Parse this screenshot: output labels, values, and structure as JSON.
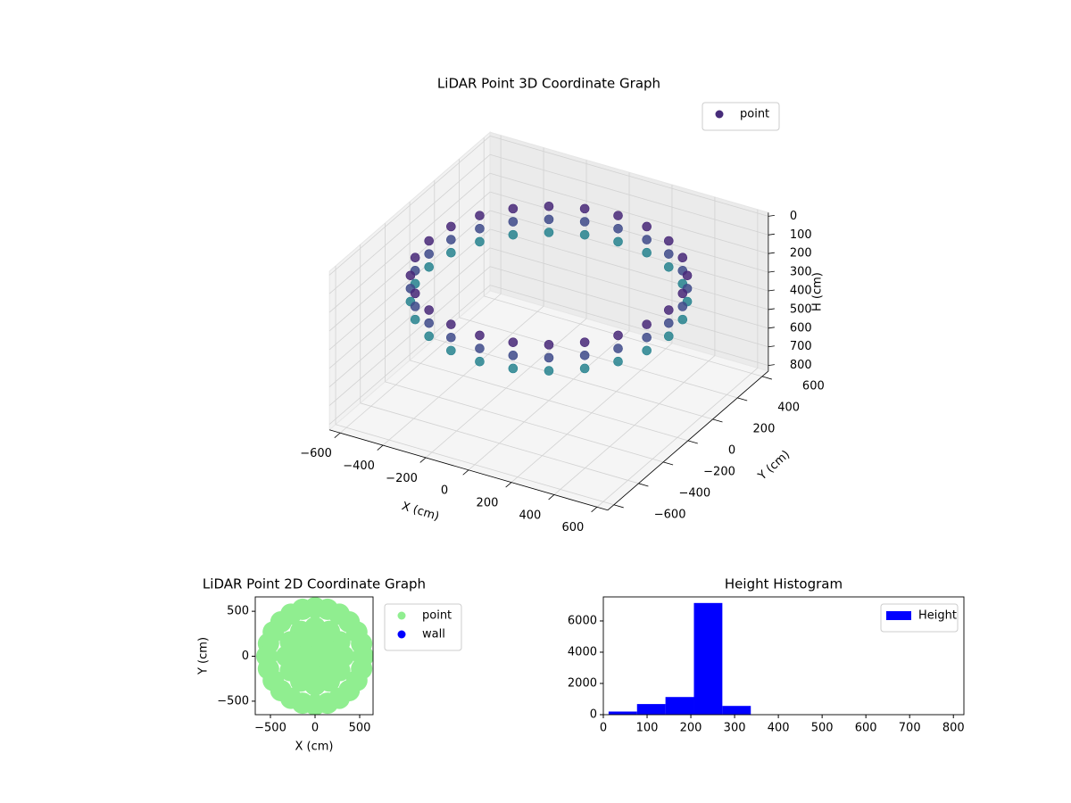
{
  "chart_data": [
    {
      "type": "scatter3d",
      "title": "LiDAR Point 3D Coordinate Graph",
      "xlabel": "X (cm)",
      "ylabel": "Y (cm)",
      "zlabel": "H (cm)",
      "xlim": [
        -650,
        650
      ],
      "ylim": [
        -650,
        650
      ],
      "zlim": [
        -20,
        830
      ],
      "z_inverted": true,
      "xticks": [
        {
          "value": -600,
          "label": "−600"
        },
        {
          "value": -400,
          "label": "−400"
        },
        {
          "value": -200,
          "label": "−200"
        },
        0,
        200,
        400,
        600
      ],
      "yticks": [
        {
          "value": -600,
          "label": "−600"
        },
        {
          "value": -400,
          "label": "−400"
        },
        {
          "value": -200,
          "label": "−200"
        },
        0,
        200,
        400,
        600
      ],
      "zticks": [
        0,
        100,
        200,
        300,
        400,
        500,
        600,
        700,
        800
      ],
      "grid": true,
      "legend": "upper right",
      "colormap": [
        "#482878",
        "#3e4a89",
        "#26828e"
      ],
      "series": [
        {
          "name": "point",
          "color": "#472c7a",
          "x": [
            560,
            541,
            485,
            396,
            280,
            145,
            0,
            -145,
            -280,
            -396,
            -485,
            -541,
            -560,
            -541,
            -485,
            -396,
            -280,
            -145,
            0,
            145,
            280,
            396,
            485,
            541,
            560,
            541,
            485,
            396,
            280,
            145,
            0,
            -145,
            -280,
            -396,
            -485,
            -541,
            -560,
            -541,
            -485,
            -396,
            -280,
            -145,
            0,
            145,
            280,
            396,
            485,
            541,
            560,
            541,
            485,
            396,
            280,
            145,
            0,
            -145,
            -280,
            -396,
            -485,
            -541,
            -560,
            -541,
            -485,
            -396,
            -280,
            -145,
            0,
            145,
            280,
            396,
            485,
            541
          ],
          "y": [
            0,
            145,
            280,
            396,
            485,
            541,
            560,
            541,
            485,
            396,
            280,
            145,
            0,
            -145,
            -280,
            -396,
            -485,
            -541,
            -560,
            -541,
            -485,
            -396,
            -280,
            -145,
            0,
            145,
            280,
            396,
            485,
            541,
            560,
            541,
            485,
            396,
            280,
            145,
            0,
            -145,
            -280,
            -396,
            -485,
            -541,
            -560,
            -541,
            -485,
            -396,
            -280,
            -145,
            0,
            145,
            280,
            396,
            485,
            541,
            560,
            541,
            485,
            396,
            280,
            145,
            0,
            -145,
            -280,
            -396,
            -485,
            -541,
            -560,
            -541,
            -485,
            -396,
            -280,
            -145
          ],
          "values": [
            160,
            160,
            160,
            160,
            160,
            160,
            160,
            160,
            160,
            160,
            160,
            160,
            160,
            160,
            160,
            160,
            160,
            160,
            160,
            160,
            160,
            160,
            160,
            160,
            230,
            230,
            230,
            230,
            230,
            230,
            230,
            230,
            230,
            230,
            230,
            230,
            230,
            230,
            230,
            230,
            230,
            230,
            230,
            230,
            230,
            230,
            230,
            230,
            300,
            300,
            300,
            300,
            300,
            300,
            300,
            300,
            300,
            300,
            300,
            300,
            300,
            300,
            300,
            300,
            300,
            300,
            300,
            300,
            300,
            300,
            300,
            300
          ]
        }
      ]
    },
    {
      "type": "scatter",
      "title": "LiDAR Point 2D Coordinate Graph",
      "xlabel": "X (cm)",
      "ylabel": "Y (cm)",
      "xlim": [
        -670,
        650
      ],
      "ylim": [
        -650,
        660
      ],
      "xticks": [
        {
          "value": -500,
          "label": "−500"
        },
        0,
        500
      ],
      "yticks": [
        {
          "value": -500,
          "label": "−500"
        },
        0,
        500
      ],
      "legend": "outside",
      "series": [
        {
          "name": "point",
          "color": "#90ee90",
          "x": [
            540,
            522,
            468,
            382,
            270,
            140,
            0,
            -140,
            -270,
            -382,
            -468,
            -522,
            -540,
            -522,
            -468,
            -382,
            -270,
            -140,
            0,
            140,
            270,
            382,
            468,
            522,
            320,
            277,
            160,
            0,
            -160,
            -277,
            -320,
            -277,
            -160,
            0,
            160,
            277,
            120,
            60,
            -60,
            -120,
            -60,
            60,
            0
          ],
          "values": [
            0,
            140,
            270,
            382,
            468,
            522,
            540,
            522,
            468,
            382,
            270,
            140,
            0,
            -140,
            -270,
            -382,
            -468,
            -522,
            -540,
            -522,
            -468,
            -382,
            -270,
            -140,
            0,
            160,
            277,
            320,
            277,
            160,
            0,
            -160,
            -277,
            -320,
            -277,
            -160,
            0,
            104,
            104,
            0,
            -104,
            -104,
            0
          ]
        },
        {
          "name": "wall",
          "color": "#0000ff",
          "x": [],
          "values": []
        }
      ]
    },
    {
      "type": "histogram",
      "title": "Height Histogram",
      "bins": [
        12,
        77,
        142,
        207,
        272,
        337,
        402,
        467,
        532,
        597,
        662
      ],
      "series": [
        {
          "name": "Height",
          "color": "#0000ff",
          "values": [
            200,
            680,
            1130,
            7150,
            560,
            0,
            0,
            0,
            0,
            0
          ]
        }
      ],
      "xlim": [
        0,
        824
      ],
      "ylim": [
        0,
        7540
      ],
      "xticks": [
        0,
        100,
        200,
        300,
        400,
        500,
        600,
        700,
        800
      ],
      "yticks": [
        0,
        2000,
        4000,
        6000
      ],
      "legend": "upper right"
    }
  ]
}
